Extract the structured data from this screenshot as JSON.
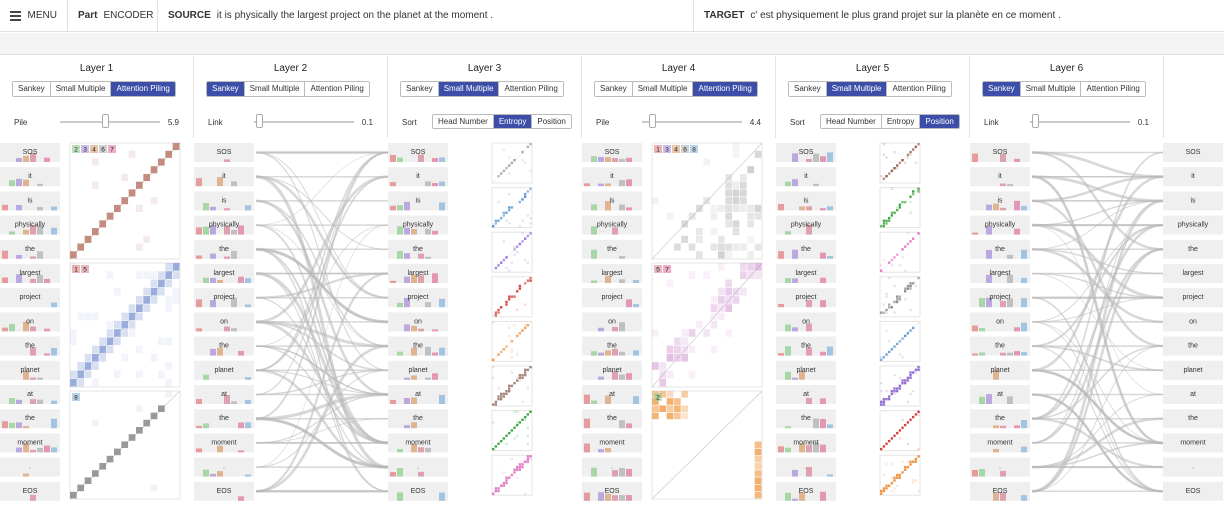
{
  "topbar": {
    "menu_label": "MENU",
    "part_label": "Part",
    "part_value": "ENCODER",
    "source_label": "SOURCE",
    "source_text": "it is physically the largest project on the planet at the moment .",
    "target_label": "TARGET",
    "target_text": "c' est physiquement le plus grand projet sur la planète en ce moment ."
  },
  "view_options": [
    "Sankey",
    "Small Multiple",
    "Attention Piling"
  ],
  "sort_options": [
    "Head Number",
    "Entropy",
    "Position"
  ],
  "layers": [
    {
      "title": "Layer 1",
      "active_view": "Attention Piling",
      "control": "Pile",
      "value": "5.9",
      "slider_fraction": 0.45
    },
    {
      "title": "Layer 2",
      "active_view": "Sankey",
      "control": "Link",
      "value": "0.1",
      "slider_fraction": 0.05
    },
    {
      "title": "Layer 3",
      "active_view": "Small Multiple",
      "control": "Sort",
      "active_sort": "Entropy"
    },
    {
      "title": "Layer 4",
      "active_view": "Attention Piling",
      "control": "Pile",
      "value": "4.4",
      "slider_fraction": 0.1
    },
    {
      "title": "Layer 5",
      "active_view": "Small Multiple",
      "control": "Sort",
      "active_sort": "Position"
    },
    {
      "title": "Layer 6",
      "active_view": "Sankey",
      "control": "Link",
      "value": "0.1",
      "slider_fraction": 0.05
    }
  ],
  "tokens": [
    "SOS",
    "it",
    "is",
    "physically",
    "the",
    "largest",
    "project",
    "on",
    "the",
    "planet",
    "at",
    "the",
    "moment",
    ".",
    "EOS"
  ],
  "pile_labels": {
    "layer1": [
      [
        "2",
        "3",
        "4",
        "6",
        "7"
      ],
      [
        "1",
        "5"
      ],
      [
        "8"
      ]
    ],
    "layer4": [
      [
        "1",
        "3",
        "4",
        "6",
        "8"
      ],
      [
        "5",
        "7"
      ],
      [
        "2"
      ]
    ]
  },
  "colors": {
    "accent": "#3c4ea8",
    "heads": [
      "#e08080",
      "#8fcf8f",
      "#a890d8",
      "#d9a070",
      "#d88898",
      "#b0b0b0",
      "#e07aa0",
      "#8ab6dc"
    ],
    "pile1": "#b87a6a",
    "pile_blue": "#8fa4d8",
    "pile_gray": "#888888",
    "pile4_orange": "#f0a050",
    "pile4_pink": "#e8c0e8",
    "link": "#b8b8b8"
  }
}
